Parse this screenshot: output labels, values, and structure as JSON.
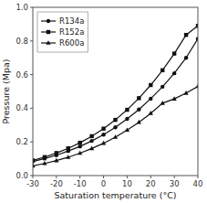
{
  "chart_data": {
    "type": "line",
    "xlabel": "Saturation temperature (°C)",
    "ylabel": "Pressure (Mpa)",
    "x": [
      -30,
      -25,
      -20,
      -15,
      -10,
      -5,
      0,
      5,
      10,
      15,
      20,
      25,
      30,
      35,
      40
    ],
    "series": [
      {
        "name": "R134a",
        "color": "#111111",
        "marker": "circle",
        "values": [
          0.084,
          0.101,
          0.121,
          0.146,
          0.173,
          0.206,
          0.243,
          0.287,
          0.337,
          0.393,
          0.457,
          0.528,
          0.608,
          0.7,
          0.813
        ]
      },
      {
        "name": "R152a",
        "color": "#111111",
        "marker": "square",
        "values": [
          0.09,
          0.11,
          0.134,
          0.162,
          0.195,
          0.234,
          0.279,
          0.331,
          0.391,
          0.46,
          0.538,
          0.626,
          0.725,
          0.836,
          0.89
        ]
      },
      {
        "name": "R600a",
        "color": "#111111",
        "marker": "triangle",
        "values": [
          0.058,
          0.072,
          0.089,
          0.109,
          0.133,
          0.161,
          0.192,
          0.228,
          0.27,
          0.317,
          0.37,
          0.43,
          0.456,
          0.49,
          0.53
        ]
      }
    ],
    "xlim": [
      -30,
      40
    ],
    "ylim": [
      0.0,
      1.0
    ],
    "xticks": [
      -30,
      -20,
      -10,
      0,
      10,
      20,
      30,
      40
    ],
    "yticks": [
      {
        "value": 0,
        "label": "0.0"
      },
      0.2,
      0.4,
      0.6,
      0.8,
      {
        "value": 1,
        "label": "1.0"
      }
    ],
    "grid": false,
    "legend": "upper left"
  }
}
